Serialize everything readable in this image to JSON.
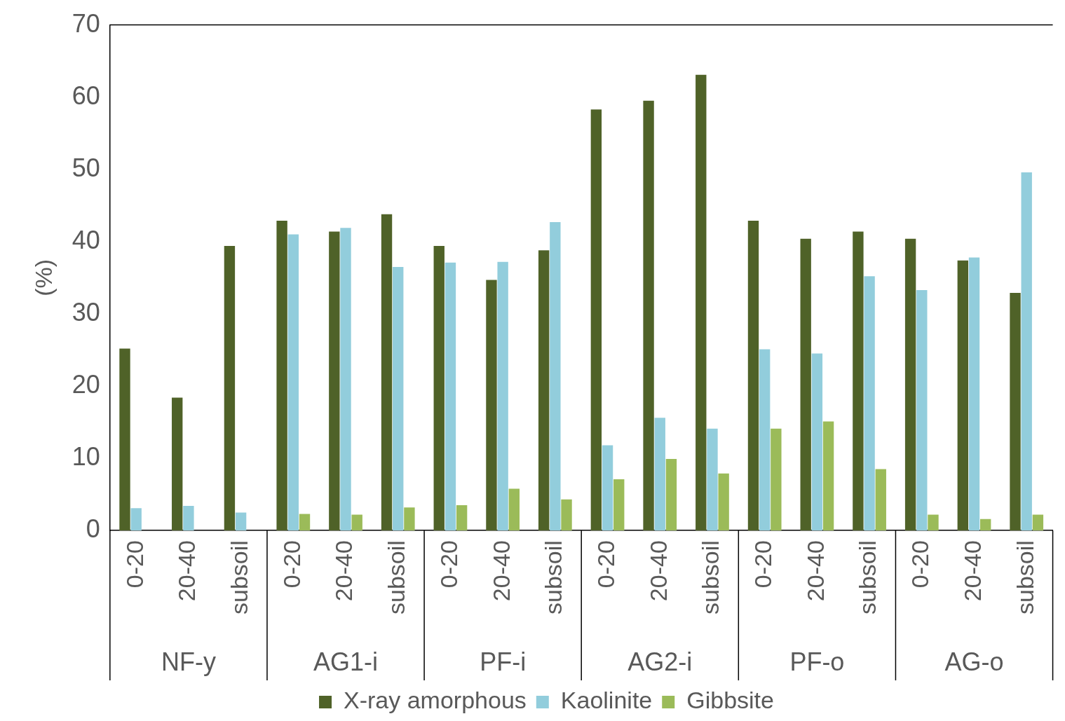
{
  "chart_data": {
    "type": "bar",
    "ylabel": "(%)",
    "categories": [
      "0-20",
      "20-40",
      "subsoil",
      "0-20",
      "20-40",
      "subsoil",
      "0-20",
      "20-40",
      "subsoil",
      "0-20",
      "20-40",
      "subsoil",
      "0-20",
      "20-40",
      "subsoil",
      "0-20",
      "20-40",
      "subsoil"
    ],
    "annotations": [
      "NF-y",
      "AG1-i",
      "PF-i",
      "AG2-i",
      "PF-o",
      "AG-o"
    ],
    "series": [
      {
        "name": "X-ray amorphous",
        "color": "#4f6228",
        "values": [
          25.2,
          18.4,
          39.4,
          42.9,
          41.4,
          43.8,
          39.4,
          34.7,
          38.8,
          58.3,
          59.5,
          63.1,
          42.9,
          40.4,
          41.4,
          40.4,
          37.4,
          32.9
        ]
      },
      {
        "name": "Kaolinite",
        "color": "#92cddc",
        "values": [
          3.1,
          3.4,
          2.5,
          41.0,
          41.9,
          36.5,
          37.1,
          37.2,
          42.7,
          11.8,
          15.6,
          14.1,
          25.1,
          24.5,
          35.2,
          33.3,
          37.8,
          49.6
        ]
      },
      {
        "name": "Gibbsite",
        "color": "#9bbb59",
        "values": [
          null,
          null,
          null,
          2.3,
          2.2,
          3.2,
          3.5,
          5.8,
          4.3,
          7.1,
          9.9,
          7.9,
          14.1,
          15.1,
          8.5,
          2.2,
          1.6,
          2.2
        ]
      }
    ],
    "ylim": [
      0,
      70
    ],
    "yticks": [
      0,
      10,
      20,
      30,
      40,
      50,
      60,
      70
    ],
    "grid": false,
    "legend": "bottom"
  }
}
